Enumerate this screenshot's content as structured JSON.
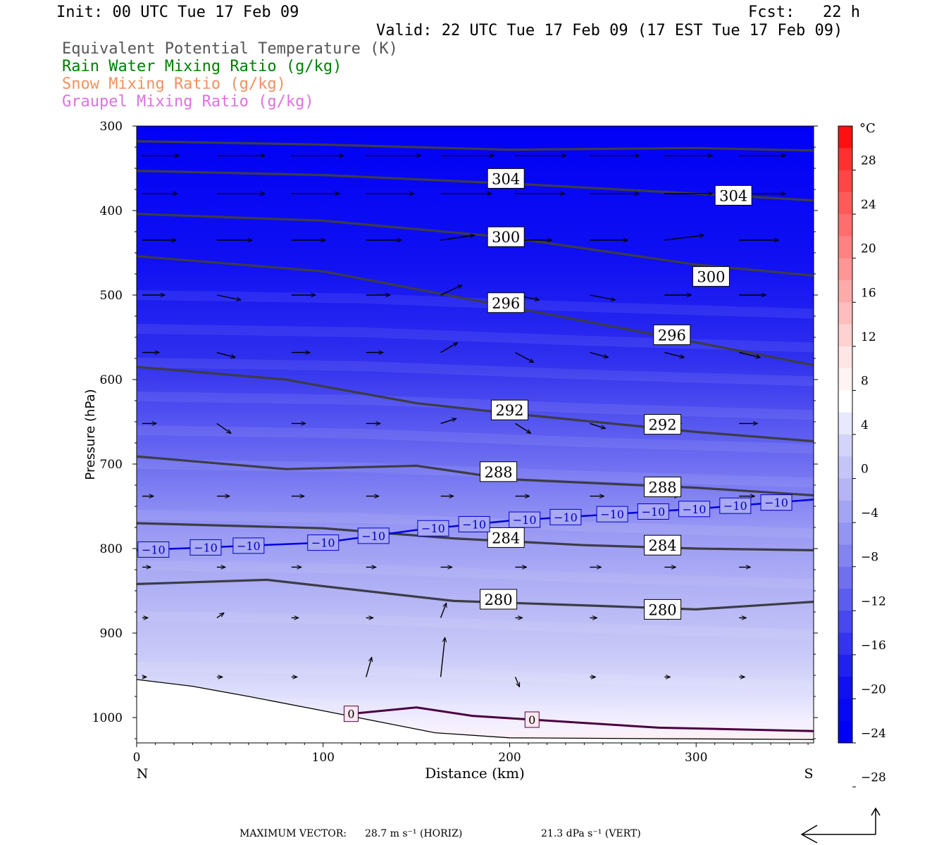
{
  "header": {
    "init": "Init: 00 UTC Tue 17 Feb 09",
    "fcst": "Fcst:   22 h",
    "valid": "Valid: 22 UTC Tue 17 Feb 09 (17 EST Tue 17 Feb 09)",
    "fields": [
      {
        "label": "Equivalent Potential Temperature (K)",
        "color": "#555555"
      },
      {
        "label": "Rain Water Mixing Ratio (g/kg)",
        "color": "#008000"
      },
      {
        "label": "Snow Mixing Ratio (g/kg)",
        "color": "#f09060"
      },
      {
        "label": "Graupel Mixing Ratio (g/kg)",
        "color": "#e070e0"
      }
    ]
  },
  "footer": {
    "max_vector_label": "MAXIMUM VECTOR:",
    "horiz": "28.7 m s⁻¹ (HORIZ)",
    "vert": "21.3 dPa s⁻¹ (VERT)"
  },
  "chart_data": {
    "type": "cross-section contour",
    "xlabel": "Distance (km)",
    "ylabel": "Pressure (hPa)",
    "xlim": [
      0,
      363
    ],
    "ylim": [
      1030,
      300
    ],
    "x_ticks": [
      "0",
      "100",
      "200",
      "300"
    ],
    "y_ticks": [
      "300",
      "400",
      "500",
      "600",
      "700",
      "800",
      "900",
      "1000"
    ],
    "left_end_label": "N",
    "right_end_label": "S",
    "colorbar": {
      "unit": "°C",
      "tick_labels": [
        "28",
        "24",
        "20",
        "16",
        "12",
        "8",
        "4",
        "0",
        "−4",
        "−8",
        "−12",
        "−16",
        "−20",
        "−24",
        "−28"
      ],
      "colors_top_to_bottom": [
        "#ff1010",
        "#ff3030",
        "#ff4545",
        "#ff5a5a",
        "#ff6e6e",
        "#ff8282",
        "#ff9696",
        "#ffaaaa",
        "#ffbebe",
        "#ffd2d2",
        "#ffe6e6",
        "#fff4f4",
        "#ffffff",
        "#e8e8ff",
        "#d4d4fa",
        "#c4c4f8",
        "#b4b4f6",
        "#a4a4f4",
        "#9494f2",
        "#8484f0",
        "#7070ee",
        "#5c5cee",
        "#4848ee",
        "#3434ee",
        "#2020f0",
        "#1010f2",
        "#0808f4",
        "#0000f6"
      ]
    },
    "theta_e": [
      {
        "level": "304",
        "points": [
          [
            0,
            353
          ],
          [
            100,
            358
          ],
          [
            200,
            368
          ],
          [
            300,
            380
          ],
          [
            363,
            388
          ]
        ]
      },
      {
        "level": "",
        "points": [
          [
            0,
            318
          ],
          [
            100,
            322
          ],
          [
            200,
            328
          ],
          [
            300,
            326
          ],
          [
            363,
            329
          ]
        ]
      },
      {
        "level": "300",
        "points": [
          [
            0,
            404
          ],
          [
            100,
            412
          ],
          [
            200,
            432
          ],
          [
            300,
            464
          ],
          [
            363,
            477
          ]
        ]
      },
      {
        "level": "296",
        "points": [
          [
            0,
            454
          ],
          [
            100,
            472
          ],
          [
            200,
            514
          ],
          [
            300,
            556
          ],
          [
            363,
            583
          ]
        ]
      },
      {
        "level": "292",
        "points": [
          [
            0,
            585
          ],
          [
            80,
            600
          ],
          [
            150,
            628
          ],
          [
            200,
            640
          ],
          [
            300,
            662
          ],
          [
            363,
            673
          ]
        ]
      },
      {
        "level": "288",
        "points": [
          [
            0,
            691
          ],
          [
            80,
            706
          ],
          [
            150,
            702
          ],
          [
            200,
            718
          ],
          [
            300,
            728
          ],
          [
            363,
            737
          ]
        ]
      },
      {
        "level": "284",
        "points": [
          [
            0,
            770
          ],
          [
            100,
            776
          ],
          [
            170,
            788
          ],
          [
            240,
            796
          ],
          [
            300,
            800
          ],
          [
            363,
            802
          ]
        ]
      },
      {
        "level": "280",
        "points": [
          [
            0,
            842
          ],
          [
            70,
            837
          ],
          [
            170,
            862
          ],
          [
            250,
            868
          ],
          [
            300,
            872
          ],
          [
            363,
            863
          ]
        ]
      }
    ],
    "theta_e_labels": [
      {
        "text": "304",
        "x": 198,
        "p": 362
      },
      {
        "text": "304",
        "x": 320,
        "p": 382
      },
      {
        "text": "300",
        "x": 198,
        "p": 431
      },
      {
        "text": "300",
        "x": 308,
        "p": 478
      },
      {
        "text": "296",
        "x": 198,
        "p": 509
      },
      {
        "text": "296",
        "x": 287,
        "p": 547
      },
      {
        "text": "292",
        "x": 200,
        "p": 636
      },
      {
        "text": "292",
        "x": 282,
        "p": 653
      },
      {
        "text": "288",
        "x": 194,
        "p": 709
      },
      {
        "text": "288",
        "x": 282,
        "p": 727
      },
      {
        "text": "284",
        "x": 198,
        "p": 787
      },
      {
        "text": "284",
        "x": 282,
        "p": 796
      },
      {
        "text": "280",
        "x": 194,
        "p": 860
      },
      {
        "text": "280",
        "x": 282,
        "p": 872
      }
    ],
    "isotherm_minus10": {
      "label": "−10",
      "points": [
        [
          0,
          802
        ],
        [
          100,
          793
        ],
        [
          150,
          778
        ],
        [
          200,
          767
        ],
        [
          300,
          753
        ],
        [
          363,
          742
        ]
      ],
      "label_x": [
        9,
        37,
        60,
        100,
        127,
        159,
        181,
        208,
        230,
        255,
        277,
        299,
        321,
        343
      ]
    },
    "isotherm_0": {
      "label": "0",
      "points": [
        [
          113,
          996
        ],
        [
          150,
          988
        ],
        [
          180,
          998
        ],
        [
          230,
          1005
        ],
        [
          280,
          1012
        ],
        [
          363,
          1016
        ]
      ],
      "label_x": [
        115,
        212
      ]
    },
    "terrain": [
      [
        0,
        955
      ],
      [
        30,
        963
      ],
      [
        60,
        975
      ],
      [
        100,
        992
      ],
      [
        130,
        1005
      ],
      [
        160,
        1018
      ],
      [
        200,
        1024
      ],
      [
        363,
        1026
      ]
    ],
    "vectors": {
      "rows_p": [
        335,
        380,
        435,
        500,
        568,
        652,
        738,
        822,
        882,
        952
      ],
      "x": [
        0,
        40,
        80,
        120,
        160,
        200,
        240,
        280,
        320
      ],
      "u": [
        [
          26,
          34,
          37,
          39,
          38,
          36,
          35,
          34,
          33
        ],
        [
          25,
          34,
          34,
          34,
          36,
          35,
          35,
          34,
          33
        ],
        [
          24,
          25,
          24,
          25,
          24,
          26,
          27,
          28,
          28
        ],
        [
          16,
          17,
          17,
          17,
          15,
          17,
          18,
          19,
          19
        ],
        [
          12,
          13,
          13,
          12,
          12,
          13,
          13,
          14,
          15
        ],
        [
          10,
          10,
          10,
          10,
          11,
          11,
          11,
          12,
          13
        ],
        [
          8,
          9,
          9,
          9,
          9,
          10,
          10,
          10,
          11
        ],
        [
          6,
          6,
          7,
          7,
          8,
          8,
          8,
          8,
          8
        ],
        [
          4,
          5,
          5,
          5,
          4,
          5,
          5,
          5,
          5
        ],
        [
          3,
          4,
          4,
          4,
          3,
          3,
          4,
          4,
          4
        ]
      ],
      "v": [
        [
          0,
          0,
          0,
          0,
          0,
          0,
          0,
          0,
          0
        ],
        [
          0,
          0,
          0,
          0,
          0,
          0,
          0,
          0,
          0
        ],
        [
          0,
          0,
          0,
          0,
          1,
          0,
          0,
          1,
          0
        ],
        [
          0,
          -1,
          0,
          0,
          2,
          -1,
          -1,
          0,
          0
        ],
        [
          0,
          -1,
          0,
          0,
          2,
          -2,
          -1,
          -1,
          -1
        ],
        [
          0,
          -2,
          0,
          0,
          1,
          -2,
          -1,
          0,
          0
        ],
        [
          0,
          0,
          0,
          0,
          0,
          0,
          0,
          0,
          0
        ],
        [
          0,
          0,
          0,
          0,
          0,
          0,
          0,
          0,
          0
        ],
        [
          0,
          1,
          0,
          0,
          3,
          0,
          0,
          0,
          0
        ],
        [
          0,
          0,
          0,
          4,
          8,
          -2,
          0,
          0,
          0
        ]
      ]
    },
    "max_vector": {
      "horiz": 28.7,
      "vert": 21.3
    }
  }
}
